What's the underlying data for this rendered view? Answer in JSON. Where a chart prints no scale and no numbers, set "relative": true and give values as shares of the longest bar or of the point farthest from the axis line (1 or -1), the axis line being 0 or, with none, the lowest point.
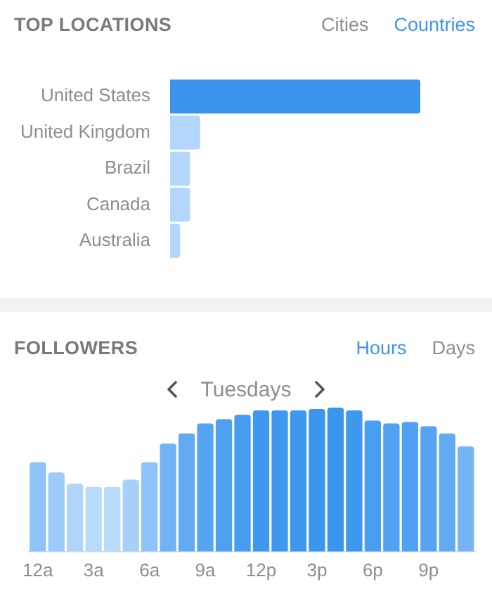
{
  "chart_data": [
    {
      "type": "bar",
      "title": "TOP LOCATIONS",
      "annotations": [
        "Cities",
        "Countries"
      ],
      "orientation": "horizontal",
      "relative": true,
      "categories": [
        "United States",
        "United Kingdom",
        "Brazil",
        "Canada",
        "Australia"
      ],
      "values": [
        1,
        0.12,
        0.08,
        0.08,
        0.04
      ],
      "colors": [
        "#3b93ec",
        "#b3d6fc",
        "#b3d6fc",
        "#b3d6fc",
        "#b3d6fc"
      ]
    },
    {
      "type": "bar",
      "title": "FOLLOWERS",
      "subtitle": "Tuesdays",
      "annotations": [
        "Hours",
        "Days"
      ],
      "relative": true,
      "categories": [
        "12a",
        null,
        null,
        "3a",
        null,
        null,
        "6a",
        null,
        null,
        "9a",
        null,
        null,
        "12p",
        null,
        null,
        "3p",
        null,
        null,
        "6p",
        null,
        null,
        "9p",
        null,
        null
      ],
      "values": [
        0.62,
        0.55,
        0.47,
        0.45,
        0.45,
        0.5,
        0.62,
        0.75,
        0.82,
        0.89,
        0.92,
        0.95,
        0.98,
        0.98,
        0.98,
        0.99,
        1,
        0.98,
        0.91,
        0.89,
        0.9,
        0.87,
        0.82,
        0.73
      ],
      "colors": [
        "#8fc3f9",
        "#9ccbf9",
        "#b0d5fb",
        "#b8dafb",
        "#b8dafb",
        "#a8d1fa",
        "#8ec2f8",
        "#72b3f5",
        "#62abf3",
        "#56a4f2",
        "#4c9ff1",
        "#469cf0",
        "#3e98ef",
        "#3e98ef",
        "#3e98ef",
        "#3c96ee",
        "#3a95ee",
        "#3e98ef",
        "#4a9ef0",
        "#52a2f1",
        "#50a1f1",
        "#57a5f2",
        "#62abf3",
        "#76b5f5"
      ]
    }
  ]
}
